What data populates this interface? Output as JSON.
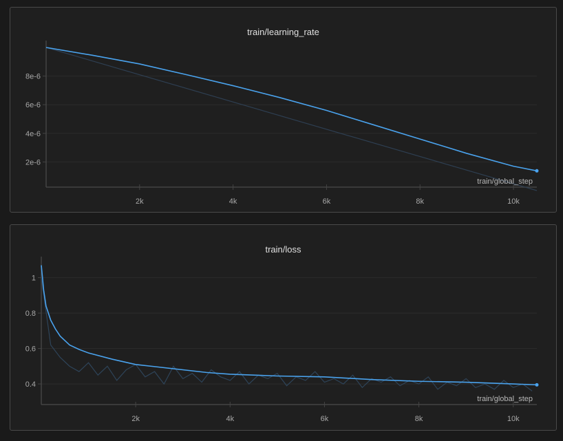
{
  "chart_data": [
    {
      "type": "line",
      "title": "train/learning_rate",
      "xlabel": "train/global_step",
      "xlim": [
        0,
        10500
      ],
      "ylim": [
        0,
        1e-05
      ],
      "x_ticks": [
        {
          "v": 2000,
          "label": "2k"
        },
        {
          "v": 4000,
          "label": "4k"
        },
        {
          "v": 6000,
          "label": "6k"
        },
        {
          "v": 8000,
          "label": "8k"
        },
        {
          "v": 10000,
          "label": "10k"
        }
      ],
      "y_ticks": [
        {
          "v": 2e-06,
          "label": "2e-6"
        },
        {
          "v": 4e-06,
          "label": "4e-6"
        },
        {
          "v": 6e-06,
          "label": "6e-6"
        },
        {
          "v": 8e-06,
          "label": "8e-6"
        }
      ],
      "grid": true,
      "colors": {
        "smoothed": "#4aa3ee",
        "raw": "#2e3f52"
      },
      "raw": {
        "x": [
          0,
          10500
        ],
        "y": [
          1e-05,
          0
        ]
      },
      "smoothed": {
        "x": [
          0,
          1000,
          2000,
          3000,
          4000,
          5000,
          6000,
          7000,
          8000,
          9000,
          10000,
          10500
        ],
        "y": [
          1e-05,
          9.45e-06,
          8.85e-06,
          8.1e-06,
          7.33e-06,
          6.5e-06,
          5.6e-06,
          4.6e-06,
          3.6e-06,
          2.6e-06,
          1.7e-06,
          1.38e-06
        ]
      }
    },
    {
      "type": "line",
      "title": "train/loss",
      "xlabel": "train/global_step",
      "xlim": [
        0,
        10500
      ],
      "ylim": [
        0.28,
        1.08
      ],
      "x_ticks": [
        {
          "v": 2000,
          "label": "2k"
        },
        {
          "v": 4000,
          "label": "4k"
        },
        {
          "v": 6000,
          "label": "6k"
        },
        {
          "v": 8000,
          "label": "8k"
        },
        {
          "v": 10000,
          "label": "10k"
        }
      ],
      "y_ticks": [
        {
          "v": 0.4,
          "label": "0.4"
        },
        {
          "v": 0.6,
          "label": "0.6"
        },
        {
          "v": 0.8,
          "label": "0.8"
        },
        {
          "v": 1,
          "label": "1"
        }
      ],
      "grid": true,
      "colors": {
        "smoothed": "#4aa3ee",
        "raw": "#2e4459"
      },
      "raw": {
        "x_step": 200,
        "y": [
          1.0,
          0.62,
          0.55,
          0.5,
          0.47,
          0.52,
          0.45,
          0.5,
          0.42,
          0.48,
          0.51,
          0.44,
          0.47,
          0.4,
          0.5,
          0.43,
          0.46,
          0.41,
          0.48,
          0.44,
          0.42,
          0.47,
          0.4,
          0.45,
          0.43,
          0.46,
          0.39,
          0.44,
          0.42,
          0.47,
          0.41,
          0.43,
          0.4,
          0.45,
          0.38,
          0.43,
          0.41,
          0.44,
          0.39,
          0.42,
          0.4,
          0.44,
          0.37,
          0.41,
          0.39,
          0.43,
          0.38,
          0.4,
          0.37,
          0.42,
          0.38,
          0.4,
          0.36
        ]
      },
      "smoothed": {
        "x": [
          0,
          50,
          100,
          200,
          300,
          400,
          600,
          800,
          1000,
          1500,
          2000,
          2500,
          3000,
          3500,
          4000,
          5000,
          6000,
          7000,
          8000,
          9000,
          10000,
          10500
        ],
        "y": [
          1.07,
          0.93,
          0.84,
          0.76,
          0.71,
          0.67,
          0.62,
          0.595,
          0.575,
          0.54,
          0.51,
          0.495,
          0.48,
          0.465,
          0.455,
          0.445,
          0.44,
          0.425,
          0.415,
          0.41,
          0.4,
          0.395
        ]
      }
    }
  ]
}
